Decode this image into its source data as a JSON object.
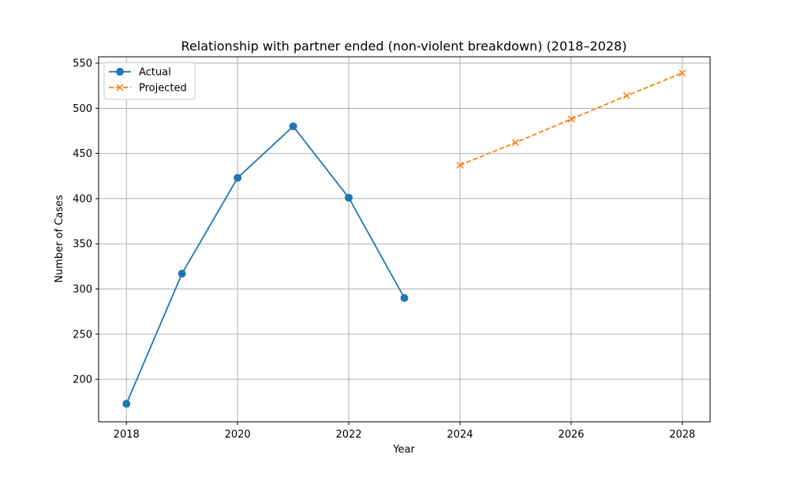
{
  "chart_data": {
    "type": "line",
    "title": "Relationship with partner ended (non-violent breakdown) (2018–2028)",
    "xlabel": "Year",
    "ylabel": "Number of Cases",
    "xlim": [
      2017.5,
      2028.5
    ],
    "ylim": [
      153,
      557
    ],
    "xticks": [
      2018,
      2020,
      2022,
      2024,
      2026,
      2028
    ],
    "yticks": [
      200,
      250,
      300,
      350,
      400,
      450,
      500,
      550
    ],
    "grid": true,
    "legend_position": "top-left",
    "series": [
      {
        "name": "Actual",
        "style": "solid",
        "marker": "circle",
        "color": "#1f77b4",
        "points": [
          {
            "x": 2018,
            "y": 173
          },
          {
            "x": 2019,
            "y": 317
          },
          {
            "x": 2020,
            "y": 423
          },
          {
            "x": 2021,
            "y": 480
          },
          {
            "x": 2022,
            "y": 401
          },
          {
            "x": 2023,
            "y": 290
          }
        ]
      },
      {
        "name": "Projected",
        "style": "dashed",
        "marker": "x",
        "color": "#ff7f0e",
        "points": [
          {
            "x": 2024,
            "y": 437
          },
          {
            "x": 2025,
            "y": 462
          },
          {
            "x": 2026,
            "y": 488
          },
          {
            "x": 2027,
            "y": 514
          },
          {
            "x": 2028,
            "y": 539
          }
        ]
      }
    ]
  }
}
